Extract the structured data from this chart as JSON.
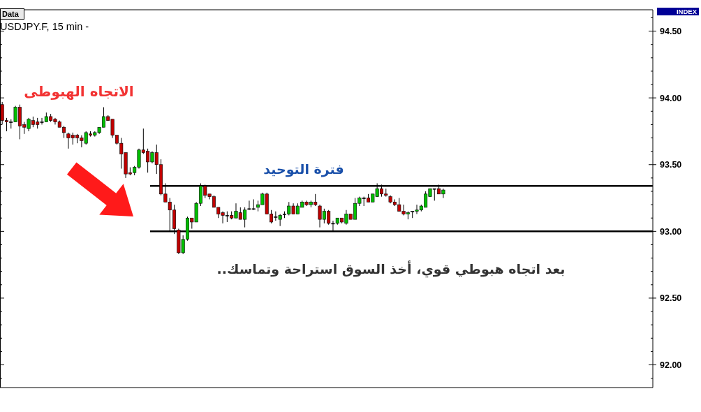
{
  "chart_data": {
    "type": "candlestick",
    "title": "USDJPY.F, 15 min -",
    "annotations": [
      "Data",
      "INDEX",
      "الاتجاه الهبوطى",
      "فترة التوحيد",
      "بعد اتجاه هبوطي قوي، أخذ السوق استراحة وتماسك.."
    ],
    "categories": [
      null,
      null,
      null,
      null,
      null,
      null,
      null,
      null,
      null,
      null,
      null,
      null,
      null,
      null,
      null,
      null,
      null,
      null,
      null,
      null,
      null,
      null,
      null,
      null,
      null,
      null,
      null,
      null,
      null,
      null,
      null,
      null,
      null,
      null,
      null,
      null,
      null,
      null,
      null,
      null,
      null,
      null,
      null,
      null,
      null,
      null,
      null,
      null,
      null,
      null,
      null,
      null,
      null,
      null,
      null,
      null,
      null,
      null,
      null,
      null,
      null,
      null,
      null,
      null,
      null,
      null,
      null,
      null,
      null,
      null,
      null,
      null,
      null,
      null,
      null,
      null,
      null,
      null,
      null,
      null,
      null,
      null,
      null,
      null,
      null,
      null,
      null,
      null,
      null,
      null,
      null,
      null,
      null,
      null,
      null,
      null,
      null,
      null,
      null,
      null,
      null,
      null,
      null,
      null,
      null,
      null,
      null,
      null,
      null,
      null,
      null,
      null,
      null,
      null,
      null,
      null,
      null,
      null,
      null,
      null,
      null,
      null,
      null,
      null,
      null,
      null,
      null,
      null,
      null,
      null,
      null,
      null,
      null,
      null,
      null,
      null,
      null,
      null,
      null,
      null,
      null,
      null,
      null,
      null,
      null,
      null,
      null,
      null
    ],
    "ohlc": [
      [
        93.95,
        93.97,
        93.8,
        93.83
      ],
      [
        93.83,
        93.85,
        93.75,
        93.82
      ],
      [
        93.82,
        93.84,
        93.77,
        93.82
      ],
      [
        93.82,
        93.94,
        93.82,
        93.93
      ],
      [
        93.93,
        93.95,
        93.69,
        93.79
      ],
      [
        93.8,
        93.82,
        93.73,
        93.78
      ],
      [
        93.77,
        93.85,
        93.75,
        93.84
      ],
      [
        93.83,
        93.86,
        93.78,
        93.8
      ],
      [
        93.82,
        93.85,
        93.77,
        93.8
      ],
      [
        93.82,
        93.85,
        93.8,
        93.82
      ],
      [
        93.82,
        93.89,
        93.82,
        93.86
      ],
      [
        93.86,
        93.88,
        93.82,
        93.83
      ],
      [
        93.84,
        93.85,
        93.8,
        93.82
      ],
      [
        93.82,
        93.83,
        93.78,
        93.78
      ],
      [
        93.78,
        93.79,
        93.7,
        93.74
      ],
      [
        93.73,
        93.74,
        93.62,
        93.7
      ],
      [
        93.72,
        93.74,
        93.65,
        93.7
      ],
      [
        93.72,
        93.73,
        93.66,
        93.7
      ],
      [
        93.7,
        93.72,
        93.63,
        93.68
      ],
      [
        93.66,
        93.75,
        93.65,
        93.74
      ],
      [
        93.73,
        93.75,
        93.71,
        93.72
      ],
      [
        93.72,
        93.75,
        93.71,
        93.74
      ],
      [
        93.74,
        93.78,
        93.73,
        93.78
      ],
      [
        93.78,
        93.93,
        93.78,
        93.86
      ],
      [
        93.86,
        93.87,
        93.83,
        93.83
      ],
      [
        93.84,
        93.84,
        93.7,
        93.72
      ],
      [
        93.72,
        93.72,
        93.65,
        93.66
      ],
      [
        93.66,
        93.7,
        93.47,
        93.58
      ],
      [
        93.59,
        93.59,
        93.4,
        93.43
      ],
      [
        93.44,
        93.48,
        93.42,
        93.43
      ],
      [
        93.44,
        93.49,
        93.42,
        93.48
      ],
      [
        93.48,
        93.62,
        93.47,
        93.61
      ],
      [
        93.61,
        93.77,
        93.58,
        93.59
      ],
      [
        93.6,
        93.62,
        93.44,
        93.52
      ],
      [
        93.52,
        93.6,
        93.51,
        93.59
      ],
      [
        93.59,
        93.65,
        93.43,
        93.5
      ],
      [
        93.5,
        93.54,
        93.27,
        93.28
      ],
      [
        93.28,
        93.36,
        93.22,
        93.22
      ],
      [
        93.22,
        93.25,
        93.0,
        93.16
      ],
      [
        93.16,
        93.2,
        92.98,
        93.02
      ],
      [
        93.01,
        93.02,
        92.83,
        92.84
      ],
      [
        92.84,
        92.97,
        92.83,
        92.94
      ],
      [
        92.94,
        93.11,
        92.93,
        93.1
      ],
      [
        93.1,
        93.1,
        93.02,
        93.07
      ],
      [
        93.07,
        93.22,
        93.07,
        93.21
      ],
      [
        93.21,
        93.36,
        93.19,
        93.34
      ],
      [
        93.34,
        93.35,
        93.25,
        93.27
      ],
      [
        93.28,
        93.28,
        93.24,
        93.26
      ],
      [
        93.26,
        93.27,
        93.18,
        93.18
      ],
      [
        93.18,
        93.18,
        93.1,
        93.13
      ],
      [
        93.14,
        93.15,
        93.06,
        93.12
      ],
      [
        93.12,
        93.15,
        93.07,
        93.12
      ],
      [
        93.12,
        93.15,
        93.09,
        93.1
      ],
      [
        93.1,
        93.21,
        93.1,
        93.15
      ],
      [
        93.14,
        93.18,
        93.09,
        93.09
      ],
      [
        93.09,
        93.18,
        93.03,
        93.16
      ],
      [
        93.17,
        93.23,
        93.16,
        93.17
      ],
      [
        93.17,
        93.24,
        93.16,
        93.17
      ],
      [
        93.18,
        93.23,
        93.15,
        93.2
      ],
      [
        93.2,
        93.29,
        93.2,
        93.28
      ],
      [
        93.28,
        93.29,
        93.13,
        93.13
      ],
      [
        93.13,
        93.16,
        93.06,
        93.07
      ],
      [
        93.11,
        93.15,
        93.08,
        93.11
      ],
      [
        93.09,
        93.13,
        93.04,
        93.12
      ],
      [
        93.13,
        93.15,
        93.1,
        93.13
      ],
      [
        93.13,
        93.22,
        93.12,
        93.19
      ],
      [
        93.19,
        93.21,
        93.13,
        93.13
      ],
      [
        93.13,
        93.21,
        93.13,
        93.19
      ],
      [
        93.18,
        93.23,
        93.18,
        93.22
      ],
      [
        93.22,
        93.23,
        93.19,
        93.2
      ],
      [
        93.2,
        93.23,
        93.18,
        93.22
      ],
      [
        93.22,
        93.28,
        93.19,
        93.2
      ],
      [
        93.19,
        93.2,
        93.03,
        93.09
      ],
      [
        93.09,
        93.17,
        93.06,
        93.15
      ],
      [
        93.15,
        93.16,
        93.05,
        93.06
      ],
      [
        93.06,
        93.08,
        93.0,
        93.06
      ],
      [
        93.06,
        93.1,
        93.05,
        93.1
      ],
      [
        93.1,
        93.1,
        93.06,
        93.07
      ],
      [
        93.06,
        93.16,
        93.05,
        93.13
      ],
      [
        93.13,
        93.13,
        93.09,
        93.09
      ],
      [
        93.09,
        93.25,
        93.09,
        93.21
      ],
      [
        93.21,
        93.26,
        93.19,
        93.25
      ],
      [
        93.25,
        93.26,
        93.19,
        93.25
      ],
      [
        93.25,
        93.28,
        93.22,
        93.22
      ],
      [
        93.22,
        93.28,
        93.22,
        93.28
      ],
      [
        93.26,
        93.36,
        93.26,
        93.32
      ],
      [
        93.32,
        93.35,
        93.26,
        93.28
      ],
      [
        93.28,
        93.32,
        93.26,
        93.27
      ],
      [
        93.26,
        93.27,
        93.21,
        93.22
      ],
      [
        93.22,
        93.24,
        93.19,
        93.2
      ],
      [
        93.2,
        93.25,
        93.15,
        93.15
      ],
      [
        93.15,
        93.2,
        93.12,
        93.13
      ],
      [
        93.13,
        93.15,
        93.09,
        93.14
      ],
      [
        93.15,
        93.15,
        93.1,
        93.15
      ],
      [
        93.15,
        93.2,
        93.13,
        93.16
      ],
      [
        93.16,
        93.2,
        93.15,
        93.19
      ],
      [
        93.18,
        93.3,
        93.18,
        93.28
      ],
      [
        93.26,
        93.32,
        93.26,
        93.32
      ],
      [
        93.32,
        93.32,
        93.23,
        93.32
      ],
      [
        93.32,
        93.35,
        93.28,
        93.28
      ],
      [
        93.28,
        93.32,
        93.25,
        93.31
      ],
      null,
      null,
      null,
      null,
      null,
      null,
      null,
      null,
      null,
      null,
      null,
      null,
      null,
      null,
      null,
      null,
      null,
      null,
      null,
      null,
      null,
      null,
      null,
      null,
      null,
      null,
      null,
      null,
      null,
      null,
      null,
      null,
      null,
      null,
      null,
      null,
      null,
      null,
      null,
      null,
      null,
      null,
      null,
      null,
      null,
      null,
      null
    ],
    "colors": [
      "#c00000",
      "#c00000",
      "#000000",
      "#00c000",
      "#c00000",
      "#c00000",
      "#00c000",
      "#c00000",
      "#c00000",
      "#000000",
      "#00c000",
      "#c00000",
      "#c00000",
      "#c00000",
      "#c00000",
      "#c00000",
      "#c00000",
      "#c00000",
      "#c00000",
      "#00c000",
      "#c00000",
      "#00c000",
      "#00c000",
      "#00c000",
      "#c00000",
      "#c00000",
      "#c00000",
      "#c00000",
      "#c00000",
      "#c00000",
      "#00c000",
      "#00c000",
      "#c00000",
      "#c00000",
      "#00c000",
      "#c00000",
      "#c00000",
      "#c00000",
      "#c00000",
      "#c00000",
      "#c00000",
      "#00c000",
      "#00c000",
      "#c00000",
      "#00c000",
      "#00c000",
      "#c00000",
      "#c00000",
      "#c00000",
      "#c00000",
      "#c00000",
      "#000000",
      "#c00000",
      "#00c000",
      "#c00000",
      "#00c000",
      "#000000",
      "#000000",
      "#00c000",
      "#00c000",
      "#c00000",
      "#c00000",
      "#000000",
      "#00c000",
      "#000000",
      "#00c000",
      "#c00000",
      "#00c000",
      "#00c000",
      "#c00000",
      "#00c000",
      "#c00000",
      "#c00000",
      "#00c000",
      "#c00000",
      "#000000",
      "#00c000",
      "#c00000",
      "#00c000",
      "#c00000",
      "#00c000",
      "#00c000",
      "#000000",
      "#c00000",
      "#00c000",
      "#00c000",
      "#c00000",
      "#c00000",
      "#c00000",
      "#c00000",
      "#c00000",
      "#c00000",
      "#00c000",
      "#000000",
      "#00c000",
      "#00c000",
      "#00c000",
      "#00c000",
      "#000000",
      "#c00000",
      "#00c000",
      null,
      null,
      null,
      null,
      null,
      null,
      null,
      null,
      null,
      null,
      null,
      null,
      null,
      null,
      null,
      null,
      null,
      null,
      null,
      null,
      null,
      null,
      null,
      null,
      null,
      null,
      null,
      null,
      null,
      null,
      null,
      null,
      null,
      null,
      null,
      null,
      null,
      null,
      null,
      null,
      null,
      null,
      null,
      null,
      null,
      null,
      null
    ],
    "ylim": [
      91.83,
      94.66
    ],
    "yticks": [
      {
        "value": 92,
        "label": "92.00"
      },
      {
        "value": 92.5,
        "label": "92.50"
      },
      {
        "value": 93,
        "label": "93.00"
      },
      {
        "value": 93.5,
        "label": "93.50"
      },
      {
        "value": 94,
        "label": "94.00"
      },
      {
        "value": 94.5,
        "label": "94.50"
      }
    ],
    "ref_lines": [
      {
        "axis": "y",
        "value": 93.34,
        "color": "#000000"
      },
      {
        "axis": "y",
        "value": 93.0,
        "color": "#000000"
      }
    ],
    "tick_labels": "y",
    "grid": false,
    "legend": false
  }
}
